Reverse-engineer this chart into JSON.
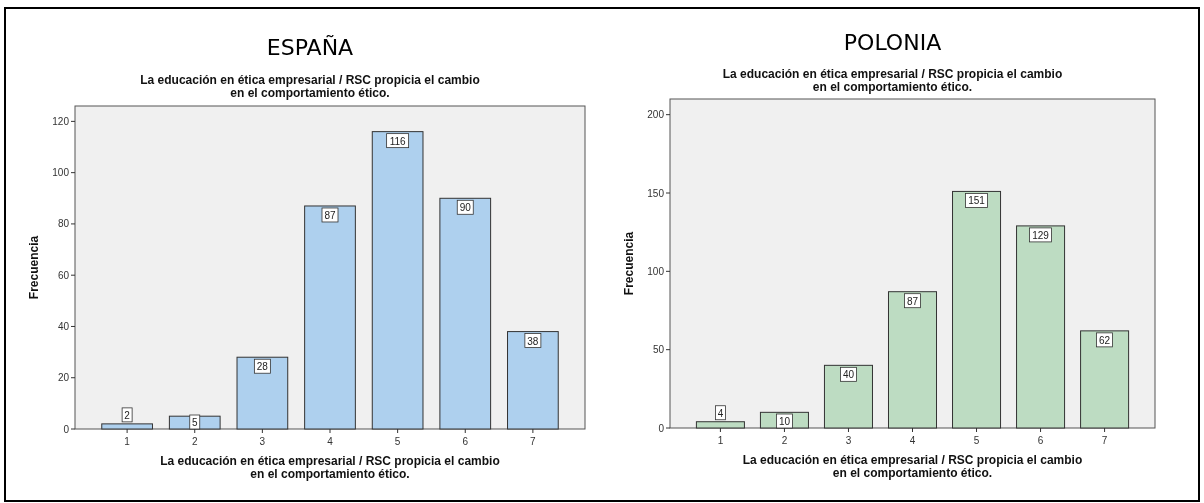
{
  "chart_data": [
    {
      "type": "bar",
      "title": "ESPAÑA",
      "subtitle": "La educación en ética empresarial / RSC propicia el cambio en el comportamiento ético.",
      "xlabel": "La educación en ética empresarial / RSC propicia el cambio en el comportamiento ético.",
      "ylabel": "Frecuencia",
      "categories": [
        "1",
        "2",
        "3",
        "4",
        "5",
        "6",
        "7"
      ],
      "values": [
        2,
        5,
        28,
        87,
        116,
        90,
        38
      ],
      "color": "#aed0ee",
      "ylim": [
        0,
        126
      ],
      "yticks": [
        0,
        20,
        40,
        60,
        80,
        100,
        120
      ],
      "data_labels": true
    },
    {
      "type": "bar",
      "title": "POLONIA",
      "subtitle": "La educación en ética empresarial / RSC propicia el cambio en el comportamiento ético.",
      "xlabel": "La educación en ética empresarial / RSC propicia el cambio en el comportamiento ético.",
      "ylabel": "Frecuencia",
      "categories": [
        "1",
        "2",
        "3",
        "4",
        "5",
        "6",
        "7"
      ],
      "values": [
        4,
        10,
        40,
        87,
        151,
        129,
        62
      ],
      "color": "#bddcc2",
      "ylim": [
        0,
        210
      ],
      "yticks": [
        0,
        50,
        100,
        150,
        200
      ],
      "data_labels": true
    }
  ]
}
